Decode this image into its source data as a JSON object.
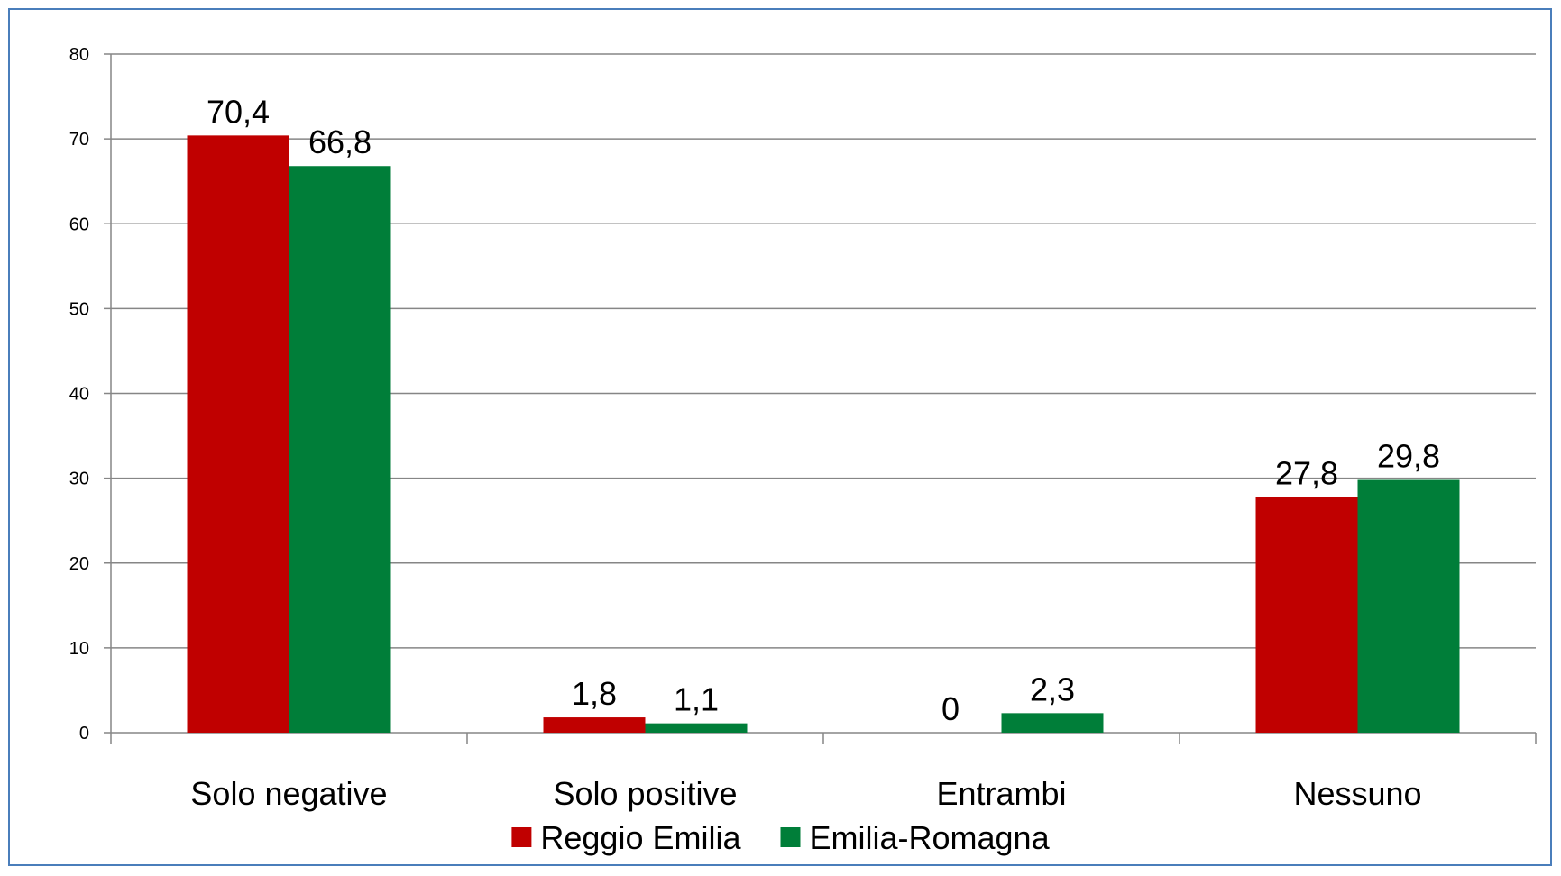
{
  "chart_data": {
    "type": "bar",
    "title": "",
    "xlabel": "",
    "ylabel": "",
    "ylim": [
      0,
      80
    ],
    "yticks": [
      0,
      10,
      20,
      30,
      40,
      50,
      60,
      70,
      80
    ],
    "grid": true,
    "legend_position": "bottom",
    "categories": [
      "Solo negative",
      "Solo positive",
      "Entrambi",
      "Nessuno"
    ],
    "series": [
      {
        "name": "Reggio Emilia",
        "color": "#c00000",
        "values": [
          70.4,
          1.8,
          0,
          27.8
        ],
        "labels": [
          "70,4",
          "1,8",
          "0",
          "27,8"
        ]
      },
      {
        "name": "Emilia-Romagna",
        "color": "#007e39",
        "values": [
          66.8,
          1.1,
          2.3,
          29.8
        ],
        "labels": [
          "66,8",
          "1,1",
          "2,3",
          "29,8"
        ]
      }
    ]
  }
}
